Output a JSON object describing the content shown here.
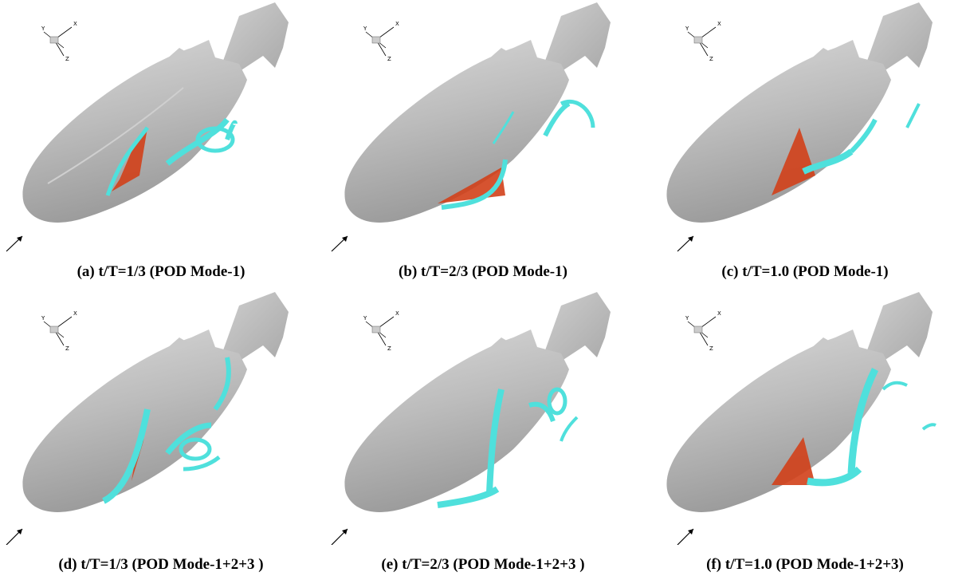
{
  "panels": [
    {
      "caption": "(a) t/T=1/3 (POD Mode-1)"
    },
    {
      "caption": "(b) t/T=2/3 (POD Mode-1)"
    },
    {
      "caption": "(c) t/T=1.0 (POD Mode-1)"
    },
    {
      "caption": "(d) t/T=1/3 (POD Mode-1+2+3 )"
    },
    {
      "caption": "(e) t/T=2/3 (POD Mode-1+2+3 )"
    },
    {
      "caption": "(f) t/T=1.0 (POD Mode-1+2+3)"
    }
  ],
  "axis_triad": {
    "x": "X",
    "y": "Y",
    "z": "Z"
  },
  "colors": {
    "fish_body": "#b9b9b9",
    "vortex_cyan": "#4fe0dc",
    "vortex_orange": "#d2401a"
  }
}
